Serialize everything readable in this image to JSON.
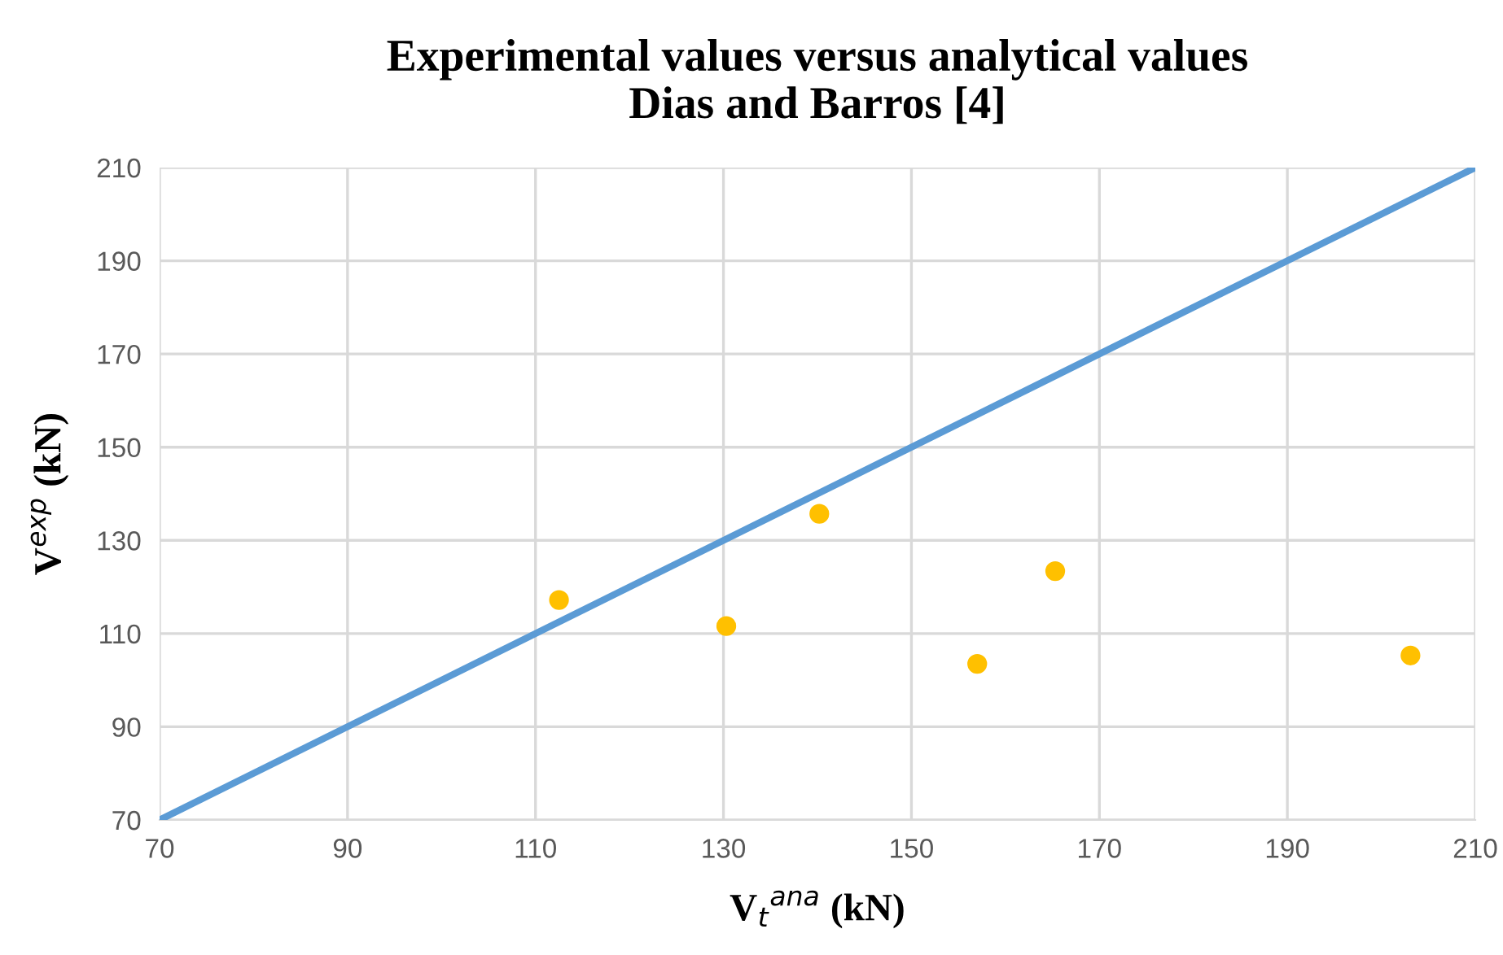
{
  "chart_data": {
    "type": "scatter",
    "title": "Experimental values versus analytical values\nDias and Barros [4]",
    "xlabel": "V$_{t}$$^{ana}$ (kN)",
    "ylabel": "V$^{exp}$ (kN)",
    "series": [
      {
        "type": "line",
        "marker": "none",
        "color": "#5b9bd5",
        "x": [
          70,
          210
        ],
        "values": [
          70,
          210
        ]
      },
      {
        "color": "#ffc000",
        "x": [
          112.5,
          130.3,
          140.2,
          157.0,
          165.3,
          203.1
        ],
        "values": [
          117.2,
          111.6,
          135.7,
          103.5,
          123.4,
          105.3
        ]
      }
    ],
    "xlim": [
      70,
      210
    ],
    "xticks": [
      70,
      90,
      110,
      130,
      150,
      170,
      190,
      210
    ],
    "ylim": [
      70,
      210
    ],
    "yticks": [
      70,
      90,
      110,
      130,
      150,
      170,
      190,
      210
    ],
    "grid": true,
    "marker": "circle"
  }
}
